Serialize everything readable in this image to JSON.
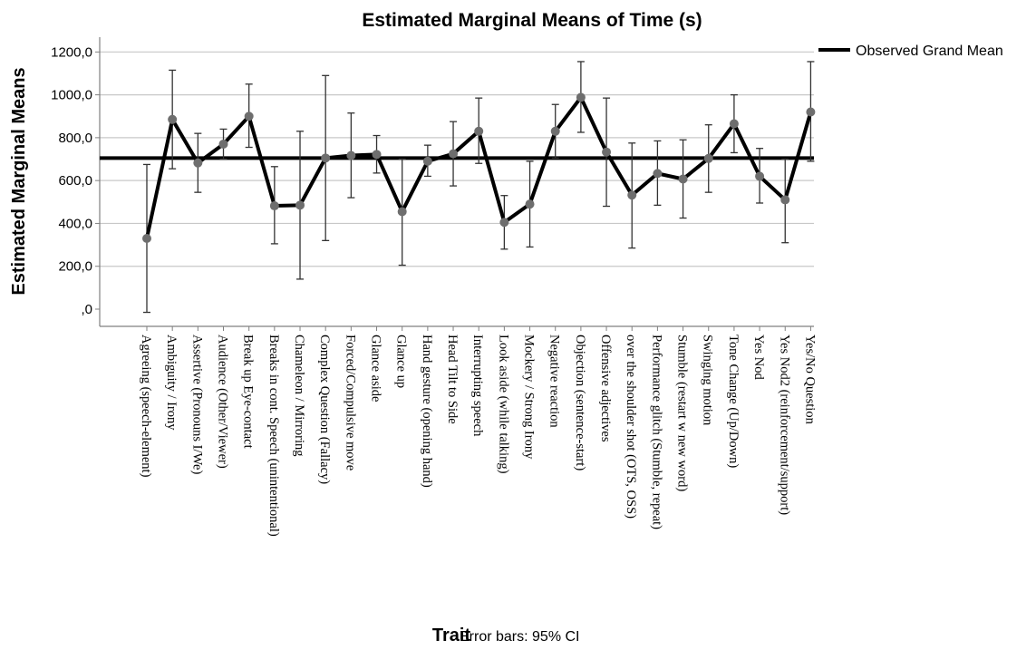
{
  "chart_data": {
    "type": "line",
    "title": "Estimated Marginal Means of Time (s)",
    "xlabel": "Trait",
    "ylabel": "Estimated Marginal Means",
    "note": "Error bars: 95% CI",
    "ylim": [
      0,
      1250
    ],
    "yticks": [
      0,
      200,
      400,
      600,
      800,
      1000,
      1200
    ],
    "ytick_labels": [
      ",0",
      "200,0",
      "400,0",
      "600,0",
      "800,0",
      "1000,0",
      "1200,0"
    ],
    "grid": "horizontal",
    "legend_position": "right",
    "reference_line": {
      "name": "Observed Grand Mean",
      "value": 705
    },
    "categories": [
      "Agreeing (speech-element)",
      "Ambiguity / Irony",
      "Assertive (Pronouns I/We)",
      "Audience (Other/Viewer)",
      "Break up Eye-contact",
      "Breaks in cont. Speech (unintentional)",
      "Chameleon / Mirroring",
      "Complex Question (Fallacy)",
      "Forced/Compulsive move",
      "Glance aside",
      "Glance up",
      "Hand gesture (opening hand)",
      "Head Tilt to Side",
      "Interrupting speech",
      "Look aside (while talking)",
      "Mockery / Strong Irony",
      "Negative reaction",
      "Objection (sentence-start)",
      "Offensive adjectives",
      "over the shoulder shot (OTS, OSS)",
      "Performance glitch (Stumble, repeat)",
      "Stumble (restart w new word)",
      "Swinging motion",
      "Tone Change (Up/Down)",
      "Yes Nod",
      "Yes Nod2 (reinforcement/support)",
      "Yes/No Question"
    ],
    "series": [
      {
        "values": [
          330,
          885,
          682,
          770,
          900,
          482,
          485,
          705,
          717,
          722,
          455,
          690,
          725,
          830,
          405,
          490,
          830,
          988,
          733,
          532,
          633,
          607,
          703,
          865,
          620,
          510,
          920
        ],
        "ci_lower": [
          -15,
          655,
          545,
          700,
          755,
          305,
          140,
          320,
          520,
          635,
          205,
          620,
          575,
          680,
          280,
          290,
          705,
          825,
          480,
          285,
          485,
          425,
          545,
          730,
          495,
          310,
          690
        ],
        "ci_upper": [
          675,
          1115,
          820,
          840,
          1050,
          665,
          830,
          1090,
          915,
          810,
          700,
          765,
          875,
          985,
          530,
          690,
          955,
          1155,
          985,
          775,
          785,
          790,
          860,
          1000,
          750,
          700,
          1155
        ]
      }
    ],
    "colors": {
      "line": "#000000",
      "marker": "#6e6e6e",
      "grid": "#c8c8c8",
      "axis": "#808080"
    }
  }
}
